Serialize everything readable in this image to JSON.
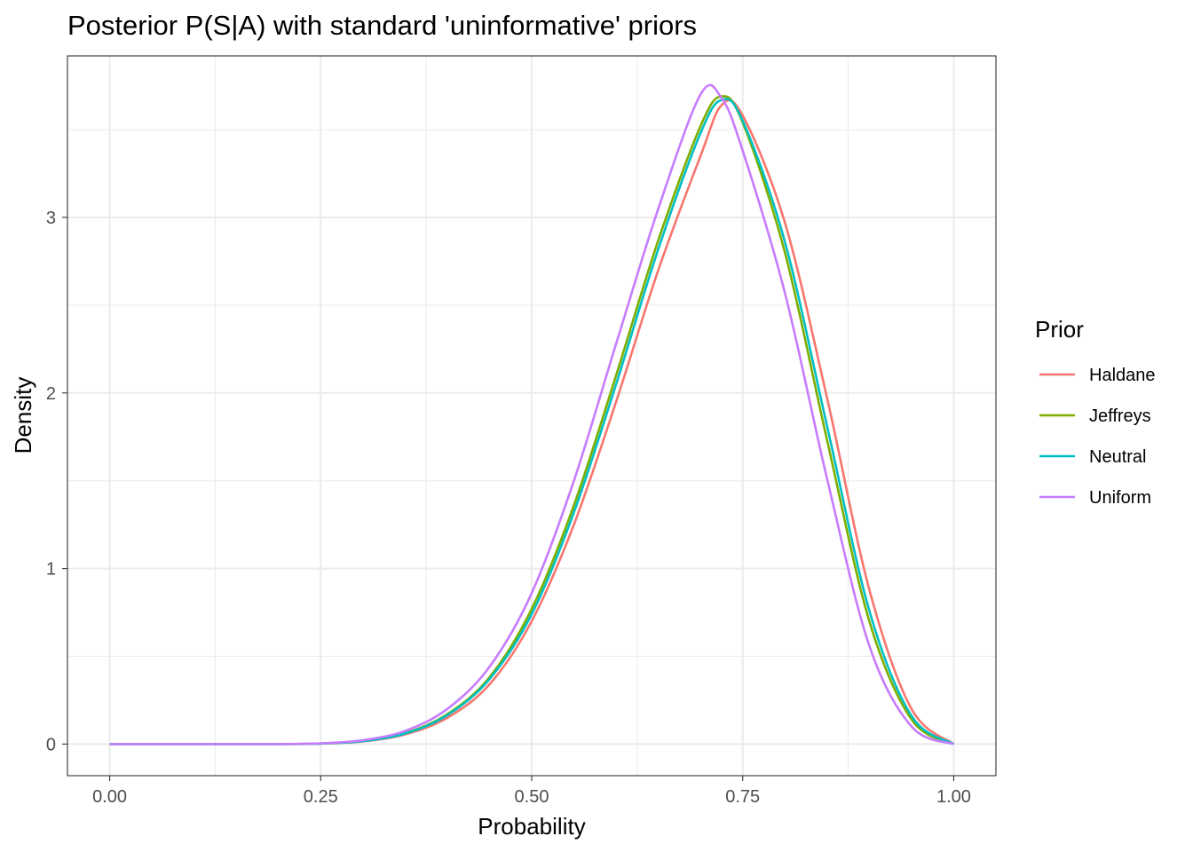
{
  "chart_data": {
    "type": "line",
    "title": "Posterior P(S|A) with standard 'uninformative' priors",
    "xlabel": "Probability",
    "ylabel": "Density",
    "xlim": [
      -0.05,
      1.05
    ],
    "ylim": [
      -0.18,
      3.92
    ],
    "x_ticks": [
      0,
      0.25,
      0.5,
      0.75,
      1
    ],
    "x_tick_labels": [
      "0.00",
      "0.25",
      "0.50",
      "0.75",
      "1.00"
    ],
    "x_minor": [
      0.125,
      0.375,
      0.625,
      0.875
    ],
    "y_ticks": [
      0,
      1,
      2,
      3
    ],
    "y_tick_labels": [
      "0",
      "1",
      "2",
      "3"
    ],
    "y_minor": [
      0.5,
      1.5,
      2.5,
      3.5
    ],
    "grid": true,
    "legend": {
      "title": "Prior",
      "position": "right"
    },
    "x": [
      0,
      0.05,
      0.1,
      0.15,
      0.2,
      0.25,
      0.3,
      0.35,
      0.4,
      0.45,
      0.5,
      0.55,
      0.6,
      0.65,
      0.7,
      0.725,
      0.75,
      0.8,
      0.85,
      0.9,
      0.95,
      1
    ],
    "series": [
      {
        "name": "Haldane",
        "color": "#F8766D",
        "values": [
          0,
          0,
          0,
          0,
          0,
          0.003,
          0.015,
          0.055,
          0.15,
          0.34,
          0.7,
          1.25,
          1.95,
          2.7,
          3.35,
          3.64,
          3.58,
          2.97,
          1.97,
          0.88,
          0.2,
          0
        ]
      },
      {
        "name": "Jeffreys",
        "color": "#7CAE00",
        "values": [
          0,
          0,
          0,
          0,
          0,
          0.003,
          0.018,
          0.062,
          0.17,
          0.38,
          0.77,
          1.36,
          2.1,
          2.87,
          3.52,
          3.69,
          3.54,
          2.8,
          1.73,
          0.7,
          0.14,
          0
        ]
      },
      {
        "name": "Neutral",
        "color": "#00BFC4",
        "values": [
          0,
          0,
          0,
          0,
          0,
          0.003,
          0.017,
          0.06,
          0.165,
          0.37,
          0.74,
          1.32,
          2.05,
          2.82,
          3.48,
          3.67,
          3.55,
          2.86,
          1.81,
          0.76,
          0.16,
          0
        ]
      },
      {
        "name": "Uniform",
        "color": "#C77CFF",
        "values": [
          0,
          0,
          0,
          0,
          0,
          0.004,
          0.022,
          0.075,
          0.2,
          0.44,
          0.86,
          1.5,
          2.28,
          3.05,
          3.7,
          3.68,
          3.38,
          2.57,
          1.51,
          0.56,
          0.1,
          0
        ]
      }
    ]
  }
}
